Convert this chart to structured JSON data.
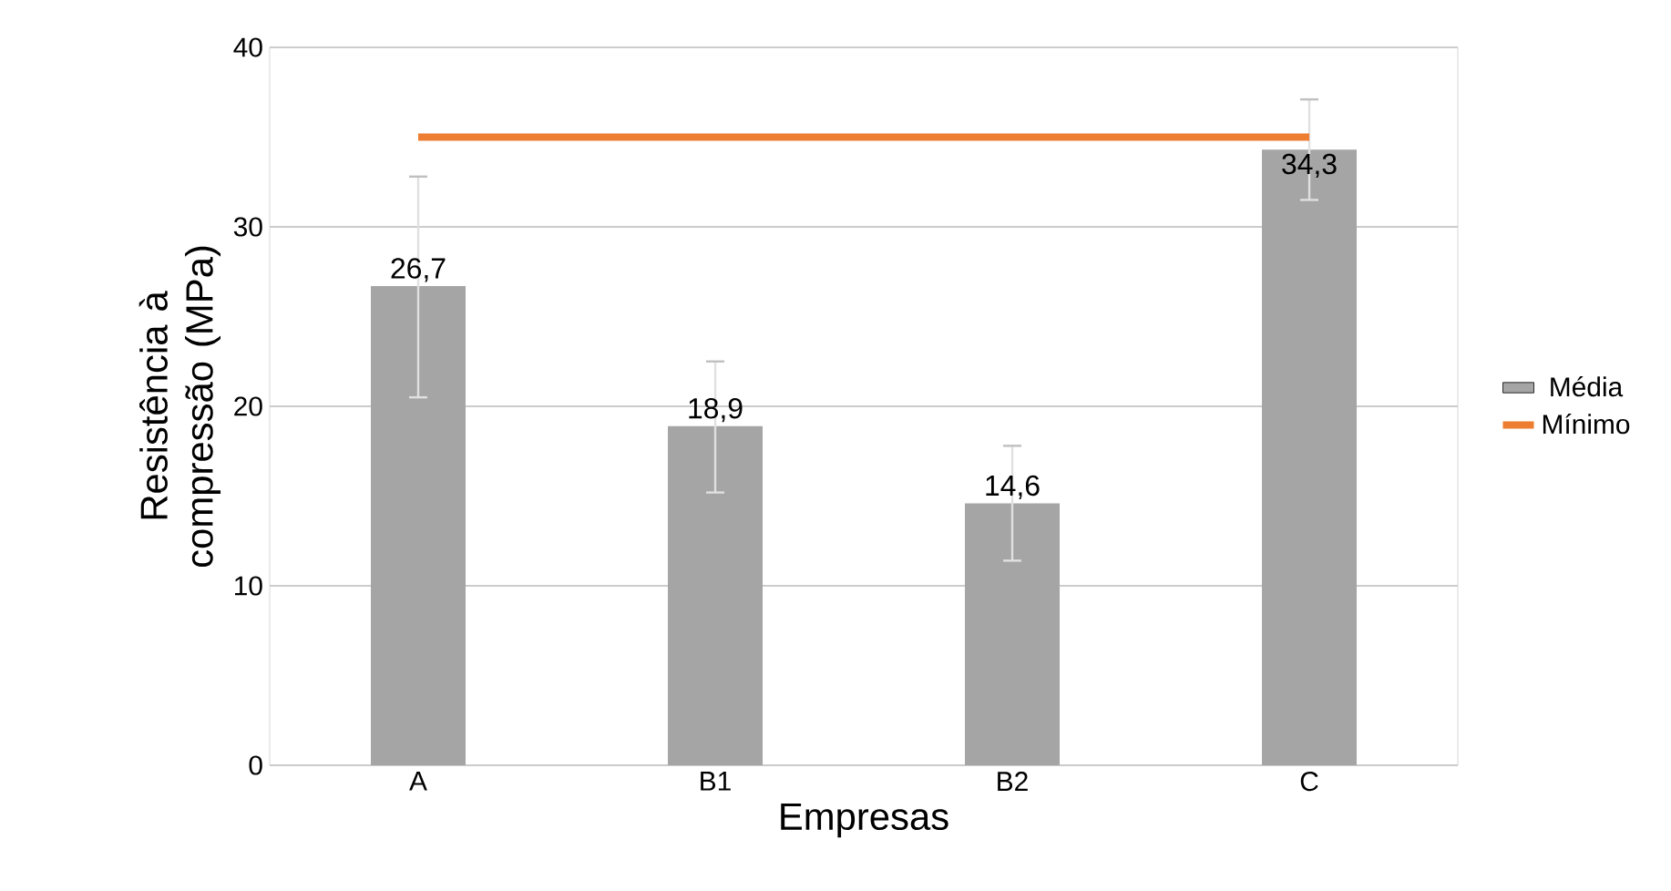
{
  "chart_data": {
    "type": "bar",
    "xlabel": "Empresas",
    "ylabel": "Resistência à compressão (MPa)",
    "categories": [
      "A",
      "B1",
      "B2",
      "C"
    ],
    "series": [
      {
        "name": "Média",
        "color": "#a5a5a5",
        "values": [
          26.7,
          18.9,
          14.6,
          34.3
        ],
        "errors": [
          [
            20.5,
            32.8
          ],
          [
            15.2,
            22.5
          ],
          [
            11.4,
            17.8
          ],
          [
            31.5,
            37.1
          ]
        ],
        "value_labels": [
          "26,7",
          "18,9",
          "14,6",
          "34,3"
        ]
      },
      {
        "name": "Mínimo",
        "type": "line",
        "color": "#ed7d31",
        "values": [
          35,
          35,
          35,
          35
        ]
      }
    ],
    "ylim": [
      0,
      40
    ],
    "yticks": [
      0,
      10,
      20,
      30,
      40
    ],
    "grid": "y",
    "legend": "right"
  }
}
